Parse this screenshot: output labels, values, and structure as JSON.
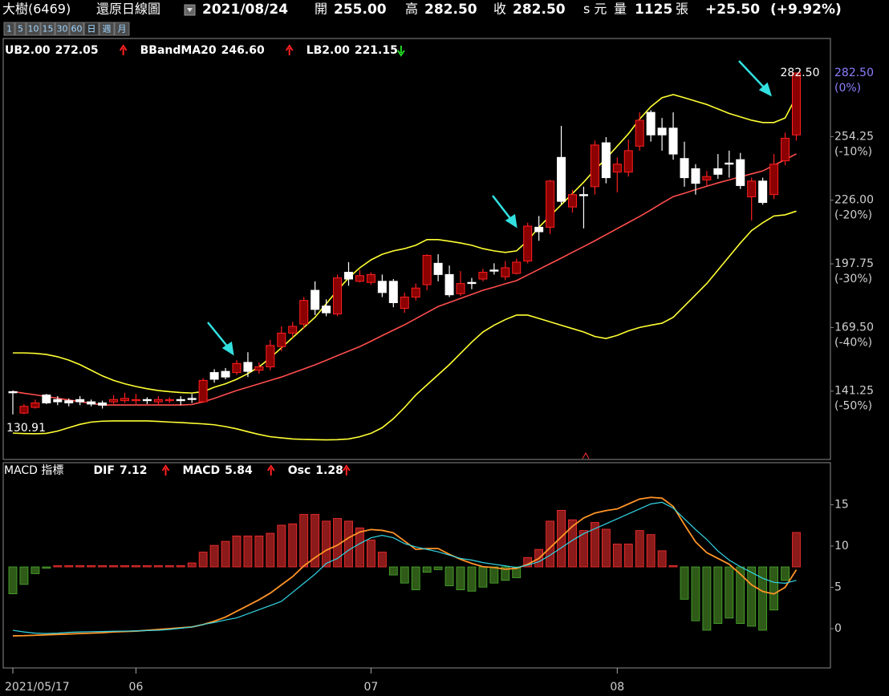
{
  "header": {
    "stock": "大樹(6469)",
    "chart_mode": "還原日線圖",
    "date": "2021/08/24",
    "open_label": "開",
    "open": "255.00",
    "high_label": "高",
    "high": "282.50",
    "close_label": "收",
    "close": "282.50",
    "close_unit": "s 元",
    "volume_label": "量",
    "volume": "1125",
    "volume_unit": "張",
    "change": "+25.50",
    "change_pct": "(+9.92%)"
  },
  "period_buttons": [
    "1",
    "5",
    "10",
    "15",
    "30",
    "60",
    "日",
    "週",
    "月"
  ],
  "chart_data": [
    {
      "type": "candlestick",
      "categories": [
        "2021/05/17",
        null,
        null,
        null,
        null,
        null,
        null,
        null,
        null,
        null,
        null,
        "06",
        null,
        null,
        null,
        null,
        null,
        null,
        null,
        null,
        null,
        null,
        null,
        null,
        null,
        null,
        null,
        null,
        null,
        null,
        null,
        null,
        "07",
        null,
        null,
        null,
        null,
        null,
        null,
        null,
        null,
        null,
        null,
        null,
        null,
        null,
        null,
        null,
        null,
        null,
        null,
        null,
        null,
        null,
        "08",
        null,
        null,
        null,
        null,
        null,
        null,
        null,
        null,
        null,
        null,
        null,
        null,
        null,
        null,
        null,
        null
      ],
      "open": [
        141,
        131.5,
        134,
        139.5,
        137.5,
        137,
        137.5,
        136.5,
        136,
        136.5,
        137,
        137,
        137.5,
        136.5,
        137,
        137.5,
        138,
        136.5,
        149.5,
        150,
        149.5,
        154,
        150.5,
        152,
        161,
        167,
        171,
        186,
        179,
        175.5,
        194,
        190,
        189.5,
        190,
        190,
        178,
        183,
        188.5,
        198,
        193,
        184.5,
        189.5,
        191,
        195,
        192,
        193.5,
        199,
        214,
        214,
        245,
        223,
        228.5,
        232,
        251.5,
        238.5,
        238.5,
        250,
        265,
        258,
        258,
        244.5,
        240,
        235,
        240,
        242.5,
        244,
        227.5,
        234.5,
        228.5,
        243.5,
        255
      ],
      "high": [
        141.5,
        135.5,
        137.5,
        140,
        139,
        138,
        139,
        137.5,
        137,
        139.5,
        140.5,
        140,
        138.5,
        139,
        138.5,
        139,
        140,
        147,
        151,
        151.5,
        155,
        158.5,
        154,
        164,
        170,
        172,
        183,
        190,
        182,
        193,
        198.5,
        195,
        194,
        193,
        191,
        185,
        189,
        202,
        202,
        197,
        194.5,
        191.5,
        195.5,
        198,
        199,
        200,
        216,
        219,
        235,
        259,
        230.5,
        232,
        252.5,
        254,
        245,
        253,
        265,
        266,
        262.5,
        265,
        252,
        242,
        239,
        246.5,
        248,
        247,
        236,
        236,
        246.5,
        256,
        282.5
      ],
      "low": [
        130.91,
        131,
        133.5,
        135.5,
        135,
        134.5,
        135,
        134.5,
        133.5,
        135.5,
        136,
        135.5,
        135.5,
        135,
        136,
        135,
        136,
        136,
        145,
        146.5,
        148.5,
        147.5,
        149,
        150.5,
        159,
        165,
        169,
        175,
        174.5,
        174.5,
        188,
        189.5,
        188.5,
        183,
        178.5,
        176,
        181.5,
        186,
        190,
        183,
        183.5,
        186.5,
        190,
        193,
        190.5,
        193,
        198,
        208,
        211,
        224,
        220.5,
        213.5,
        228.5,
        233.5,
        229.5,
        236.5,
        248,
        252,
        248,
        244,
        232,
        228.5,
        232.5,
        235.5,
        236,
        231,
        217,
        224,
        226.5,
        241.5,
        252.5
      ],
      "close": [
        140.5,
        134.5,
        136,
        136,
        136.5,
        136,
        136.5,
        135.5,
        135,
        137.5,
        138,
        137.5,
        137,
        137.5,
        137.5,
        137,
        137.5,
        146,
        146.5,
        147.5,
        153.5,
        150,
        152,
        161.5,
        167,
        170,
        181.5,
        177.5,
        176,
        191.5,
        191,
        192.5,
        193,
        185,
        180.5,
        183,
        187,
        201.5,
        193,
        184,
        189,
        189,
        194,
        194.5,
        196,
        198.5,
        214.5,
        212,
        234.5,
        225.5,
        228.5,
        228,
        250.5,
        236,
        242,
        248,
        261.5,
        255,
        255,
        246.5,
        236,
        233.5,
        236.5,
        237.5,
        242,
        232.5,
        234.5,
        225,
        242,
        253.5,
        282.5
      ],
      "up_color": "#8b0000",
      "up_border_color": "#ff2020",
      "down_color": "#ffffff",
      "series": [
        {
          "name": "UB2.00",
          "color": "#ffff33",
          "values": [
            158.2,
            158.2,
            158,
            157.5,
            156.5,
            155,
            153,
            150.5,
            148,
            146,
            144.5,
            143.3,
            142.3,
            141.5,
            141,
            140.6,
            140.4,
            141,
            143,
            144.5,
            146.5,
            149,
            152,
            156,
            160.5,
            165,
            169.5,
            174,
            180,
            186,
            191.5,
            196,
            199.5,
            202,
            203.5,
            204.5,
            206,
            208.5,
            208.5,
            207.8,
            207,
            206,
            204.5,
            203.5,
            202.8,
            203.5,
            208,
            214,
            219,
            224,
            229,
            234,
            239.5,
            244.5,
            250,
            255.5,
            262,
            267.5,
            271.5,
            272.9,
            271.5,
            270,
            268.5,
            266.5,
            264.5,
            263,
            261.5,
            260.5,
            260.5,
            262.5,
            272.05
          ]
        },
        {
          "name": "BBandMA20",
          "color": "#ff4d4d",
          "values": [
            141.1,
            140.3,
            139.6,
            138.8,
            138.1,
            137.3,
            136.6,
            135.8,
            135.1,
            135.1,
            135.1,
            135.1,
            135.1,
            135.1,
            135.1,
            135.1,
            135.3,
            136.5,
            138,
            139.8,
            141.5,
            143,
            144.5,
            146,
            147.5,
            149.3,
            151.1,
            152.9,
            154.9,
            157,
            159,
            161,
            163.4,
            165.9,
            168.3,
            170.7,
            173.4,
            176.1,
            178.8,
            180.6,
            182.4,
            184.2,
            186,
            187.4,
            188.9,
            190.3,
            192.8,
            195.3,
            197.8,
            200.3,
            202.9,
            205.4,
            208,
            210.7,
            213.4,
            216.1,
            218.8,
            221.7,
            224.7,
            227.6,
            229.1,
            230.7,
            232.2,
            233.7,
            235,
            236.4,
            237.7,
            239,
            241.5,
            244,
            246.6
          ],
          "value_labels": [
            null,
            null,
            null,
            null,
            null,
            null,
            null,
            null,
            null,
            null,
            null,
            null,
            null,
            null,
            null,
            null,
            null,
            null,
            null,
            null,
            null,
            null,
            null,
            null,
            null,
            null,
            null,
            null,
            null,
            null,
            null,
            null,
            null,
            null,
            null,
            null,
            null,
            null,
            null,
            null,
            null,
            null,
            null,
            null,
            null,
            null,
            null,
            null,
            null,
            null,
            null,
            null,
            null,
            null,
            null,
            null,
            null,
            null,
            null,
            null,
            null,
            null,
            null,
            null,
            null,
            null,
            null,
            null,
            null,
            null,
            "246.60"
          ]
        },
        {
          "name": "LB2.00",
          "color": "#ffff33",
          "values": [
            122.6,
            122.4,
            122.3,
            122.5,
            123.5,
            125,
            126.5,
            127.5,
            127.9,
            128,
            128,
            128,
            128,
            127.8,
            127.5,
            127.3,
            127,
            126.7,
            126.3,
            125.5,
            124.5,
            123.2,
            122,
            121,
            120.5,
            120,
            119.8,
            119.7,
            119.6,
            119.7,
            120,
            121,
            122.5,
            125,
            129,
            134,
            139.5,
            144,
            148.5,
            153,
            158,
            163,
            167.5,
            170.5,
            173,
            175,
            175,
            173.5,
            172,
            170.5,
            169,
            167.5,
            165.5,
            164.6,
            166,
            168,
            169.5,
            170.5,
            171.4,
            174,
            179,
            184,
            189,
            195,
            201,
            207,
            212.5,
            216,
            219,
            219.5,
            221.15
          ]
        }
      ],
      "ylim": [
        110.9,
        297.8
      ],
      "yticks": [
        254.25,
        {
          "value": 226,
          "label": "226.00"
        },
        197.75,
        {
          "value": 169.5,
          "label": "169.50"
        },
        141.25
      ],
      "ytick_percent_labels": [
        "(-10%)",
        "(-20%)",
        "(-30%)",
        "(-40%)",
        "(-50%)"
      ],
      "price_marker": {
        "value": 282.5,
        "label": "282.50",
        "percent_label": "(0%)",
        "color": "#8c7fff"
      },
      "annotations": [
        {
          "value": 282.5,
          "label": "282.50"
        },
        {
          "value": 130.91,
          "label": "130.91"
        }
      ]
    },
    {
      "type": "macd",
      "title": "MACD 指標",
      "series": [
        {
          "name": "DIF",
          "color": "#ff9428",
          "values": [
            -0.87,
            -0.85,
            -0.8,
            -0.75,
            -0.7,
            -0.65,
            -0.6,
            -0.55,
            -0.5,
            -0.4,
            -0.35,
            -0.3,
            -0.2,
            -0.1,
            0,
            0.1,
            0.2,
            0.5,
            0.9,
            1.4,
            2.1,
            2.8,
            3.5,
            4.3,
            5.3,
            6.3,
            7.6,
            8.6,
            9.5,
            10.1,
            11,
            11.7,
            12,
            11.9,
            11.6,
            10.6,
            9.6,
            9.7,
            9.7,
            9,
            8.4,
            7.9,
            7.5,
            7.4,
            7.2,
            7.3,
            7.8,
            8.5,
            9.8,
            11.1,
            12.4,
            13.4,
            14,
            14.3,
            14.5,
            15.1,
            15.7,
            15.9,
            15.8,
            14.8,
            12.6,
            10.5,
            9.2,
            8.5,
            7.8,
            6.6,
            5.3,
            4.5,
            4.2,
            5,
            7.12
          ]
        },
        {
          "name": "MACD",
          "color": "#33d6e6",
          "values": [
            -0.2,
            -0.4,
            -0.55,
            -0.6,
            -0.55,
            -0.45,
            -0.4,
            -0.37,
            -0.35,
            -0.32,
            -0.3,
            -0.27,
            -0.23,
            -0.2,
            -0.1,
            0.05,
            0.2,
            0.5,
            0.75,
            1.05,
            1.3,
            1.8,
            2.3,
            2.8,
            3.3,
            4.4,
            5.5,
            6.6,
            7.9,
            8.5,
            9.5,
            10.3,
            11,
            11.3,
            11,
            10.3,
            9.9,
            9.6,
            9.3,
            8.9,
            8.5,
            8.3,
            8,
            7.8,
            7.6,
            7.4,
            7.7,
            8.1,
            8.9,
            9.8,
            10.7,
            11.5,
            12.1,
            12.7,
            13.3,
            13.9,
            14.5,
            15.1,
            15.3,
            14.6,
            13.3,
            12,
            10.8,
            9.4,
            8.3,
            7.5,
            6.8,
            6.1,
            5.6,
            5.5,
            5.84
          ]
        },
        {
          "name": "Osc",
          "axis": "y2",
          "color": "#ff3b3b",
          "up_color": "#8b1a1a",
          "up_border_color": "#ff3030",
          "down_color": "#2f5a17",
          "down_border_color": "#4caf30",
          "values": [
            -1,
            -0.65,
            -0.25,
            -0.05,
            0.05,
            0.05,
            0.05,
            0.05,
            0.05,
            0.05,
            0.05,
            0.05,
            0.05,
            0.05,
            0.05,
            0.05,
            0.15,
            0.55,
            0.8,
            0.95,
            1.15,
            1.15,
            1.15,
            1.25,
            1.55,
            1.6,
            1.95,
            1.95,
            1.7,
            1.8,
            1.7,
            1.45,
            1,
            0.55,
            -0.3,
            -0.6,
            -0.85,
            -0.2,
            -0.1,
            -0.7,
            -0.85,
            -0.9,
            -0.75,
            -0.6,
            -0.5,
            -0.4,
            0.35,
            0.65,
            1.7,
            2.1,
            1.75,
            1.35,
            1.65,
            1.4,
            0.85,
            0.85,
            1.35,
            1.2,
            0.6,
            0.05,
            -1.2,
            -2,
            -2.35,
            -2.1,
            -1.9,
            -2.1,
            -2.2,
            -2.35,
            -1.6,
            -0.5,
            1.28
          ]
        }
      ],
      "ylim": [
        -4.76,
        20.1
      ],
      "yticks": [
        0,
        5,
        10,
        15
      ],
      "y2lim": [
        -3.75,
        3.87
      ]
    }
  ]
}
